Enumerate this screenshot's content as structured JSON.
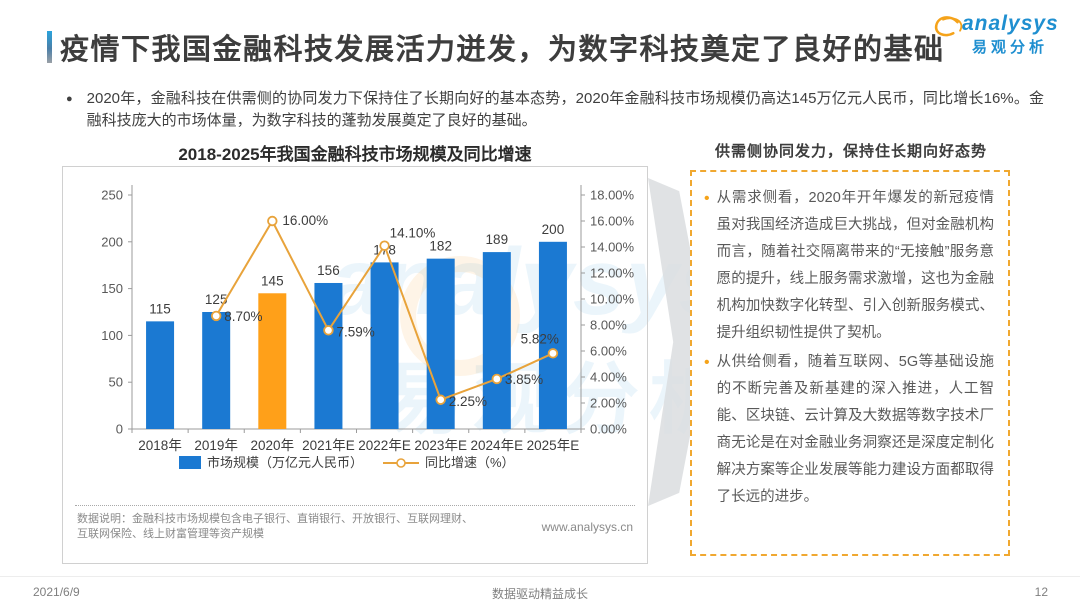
{
  "header": {
    "title": "疫情下我国金融科技发展活力迸发，为数字科技奠定了良好的基础",
    "logo": {
      "brand_en": "analysys",
      "brand_cn": "易观分析"
    }
  },
  "summary": {
    "bullet_glyph": "●",
    "text": "2020年，金融科技在供需侧的协同发力下保持住了长期向好的基本态势，2020年金融科技市场规模仍高达145万亿元人民币，同比增长16%。金融科技庞大的市场体量，为数字科技的蓬勃发展奠定了良好的基础。"
  },
  "chart": {
    "title": "2018-2025年我国金融科技市场规模及同比增速",
    "note": "数据说明：金融科技市场规模包含电子银行、直销银行、开放银行、互联网理财、互联网保险、线上财富管理等资产规模",
    "source_url": "www.analysys.cn"
  },
  "chart_data": {
    "type": "bar+line combo",
    "title": "2018-2025年我国金融科技市场规模及同比增速",
    "categories": [
      "2018年",
      "2019年",
      "2020年",
      "2021年E",
      "2022年E",
      "2023年E",
      "2024年E",
      "2025年E"
    ],
    "series": [
      {
        "name": "市场规模（万亿元人民币）",
        "type": "bar",
        "axis": "left",
        "values": [
          115,
          125,
          145,
          156,
          178,
          182,
          189,
          200
        ],
        "color": "#1b79d2",
        "highlight_index": 2,
        "highlight_color": "#ffa019"
      },
      {
        "name": "同比增速（%）",
        "type": "line",
        "axis": "right",
        "values": [
          null,
          8.7,
          16.0,
          7.59,
          14.1,
          2.25,
          3.85,
          5.82
        ],
        "labels": [
          "",
          "8.70%",
          "16.00%",
          "7.59%",
          "14.10%",
          "2.25%",
          "3.85%",
          "5.82%"
        ],
        "color": "#e8a33b"
      }
    ],
    "left_axis": {
      "ticks": [
        0,
        50,
        100,
        150,
        200,
        250
      ],
      "min": 0,
      "max": 250
    },
    "right_axis": {
      "tick_labels": [
        "0.00%",
        "2.00%",
        "4.00%",
        "6.00%",
        "8.00%",
        "10.00%",
        "12.00%",
        "14.00%",
        "16.00%",
        "18.00%"
      ],
      "min": 0,
      "max": 18,
      "step": 2
    },
    "grid": false,
    "legend_position": "bottom"
  },
  "side_panel": {
    "title": "供需侧协同发力，保持住长期向好态势",
    "bullet_glyph": "•",
    "bullets": [
      "从需求侧看，2020年开年爆发的新冠疫情虽对我国经济造成巨大挑战，但对金融机构而言，随着社交隔离带来的“无接触”服务意愿的提升，线上服务需求激增，这也为金融机构加快数字化转型、引入创新服务模式、提升组织韧性提供了契机。",
      "从供给侧看，随着互联网、5G等基础设施的不断完善及新基建的深入推进，人工智能、区块链、云计算及大数据等数字技术厂商无论是在对金融业务洞察还是深度定制化解决方案等企业发展等能力建设方面都取得了长远的进步。"
    ]
  },
  "watermark": {
    "en": "analysys",
    "cn": "易观分析"
  },
  "footer": {
    "date": "2021/6/9",
    "slogan": "数据驱动精益成长",
    "page": "12"
  }
}
